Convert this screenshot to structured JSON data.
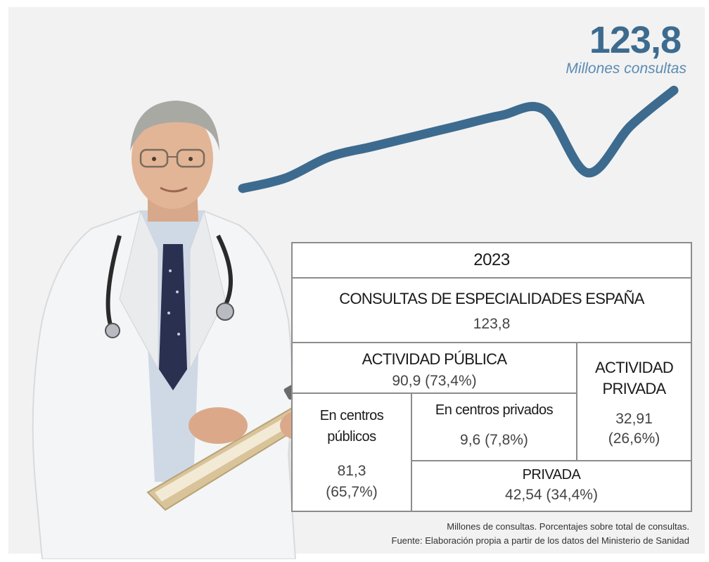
{
  "kpi": {
    "value": "123,8",
    "unit": "Millones consultas"
  },
  "chart_data": {
    "type": "line",
    "title": "",
    "series": [
      {
        "values": [
          105,
          107,
          111,
          113,
          115,
          117,
          119,
          120,
          108,
          117,
          123.8
        ]
      }
    ],
    "ylim": [
      100,
      126
    ],
    "color": "#3d6b8f"
  },
  "table": {
    "year": "2023",
    "title": "CONSULTAS DE ESPECIALIDADES ESPAÑA",
    "total": "123,8",
    "publica": {
      "label": "ACTIVIDAD PÚBLICA",
      "value": "90,9 (73,4%)"
    },
    "privada": {
      "label_line1": "ACTIVIDAD",
      "label_line2": "PRIVADA",
      "value": "32,91",
      "pct": "(26,6%)"
    },
    "centros_publicos": {
      "line1": "En centros",
      "line2": "públicos",
      "value": "81,3",
      "pct": "(65,7%)"
    },
    "centros_privados": {
      "label": "En centros privados",
      "value": "9,6 (7,8%)"
    },
    "privada_total": {
      "label": "PRIVADA",
      "value": "42,54  (34,4%)"
    }
  },
  "notes": {
    "line1": "Millones de consultas. Porcentajes sobre total de consultas.",
    "line2": "Fuente: Elaboración propia a partir de los datos del Ministerio de Sanidad"
  }
}
